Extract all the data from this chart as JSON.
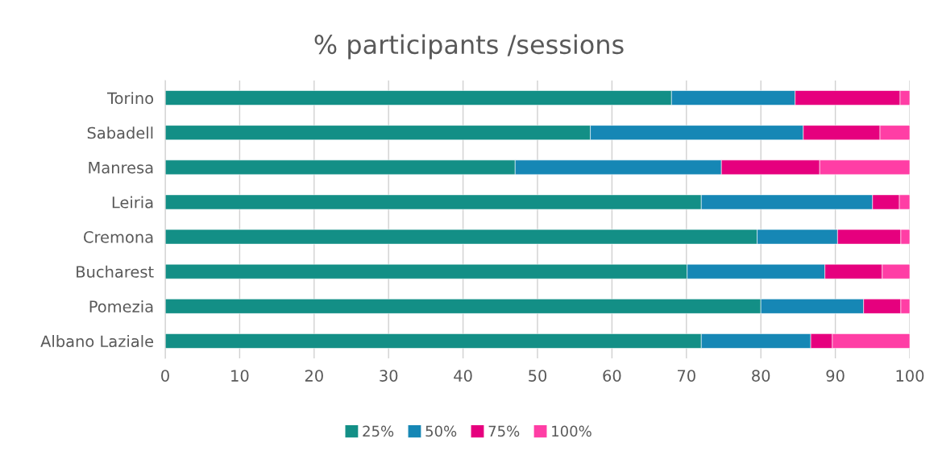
{
  "chart_data": {
    "type": "bar",
    "orientation": "horizontal",
    "stacked": true,
    "title": "% participants /sessions",
    "categories": [
      "Torino",
      "Sabadell",
      "Manresa",
      "Leiria",
      "Cremona",
      "Bucharest",
      "Pomezia",
      "Albano Laziale"
    ],
    "series": [
      {
        "name": "25%",
        "color": "#138f86",
        "values": [
          68,
          57.1,
          47,
          72,
          79.5,
          70.1,
          80,
          72
        ]
      },
      {
        "name": "50%",
        "color": "#1687b5",
        "values": [
          16.6,
          28.6,
          27.7,
          23,
          10.8,
          18.5,
          13.8,
          14.7
        ]
      },
      {
        "name": "75%",
        "color": "#e6007e",
        "values": [
          14.1,
          10.3,
          13.2,
          3.6,
          8.5,
          7.7,
          5,
          2.9
        ]
      },
      {
        "name": "100%",
        "color": "#ff3ea5",
        "values": [
          1.3,
          4,
          12.1,
          1.4,
          1.2,
          3.7,
          1.2,
          10.4
        ]
      }
    ],
    "xlim": [
      0,
      100
    ],
    "xticks": [
      0,
      10,
      20,
      30,
      40,
      50,
      60,
      70,
      80,
      90,
      100
    ],
    "grid": "x",
    "legend": "bottom"
  }
}
